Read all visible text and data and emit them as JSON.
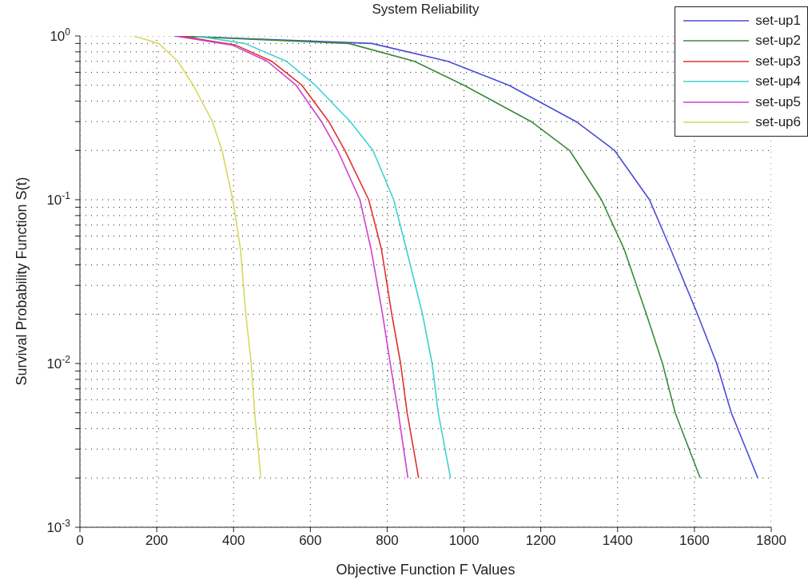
{
  "chart_data": {
    "type": "line",
    "title": "System Reliability",
    "xlabel": "Objective Function F Values",
    "ylabel": "Survival Probability Function S(t)",
    "xlim": [
      0,
      1800
    ],
    "xticks": [
      0,
      200,
      400,
      600,
      800,
      1000,
      1200,
      1400,
      1600,
      1800
    ],
    "ylim": [
      0.001,
      1
    ],
    "log": true,
    "yticks": [
      {
        "value": 0.001,
        "label": "10$^{-3}$"
      },
      {
        "value": 0.002,
        "label": null
      },
      {
        "value": 0.003,
        "label": null
      },
      {
        "value": 0.004,
        "label": null
      },
      {
        "value": 0.005,
        "label": null
      },
      {
        "value": 0.006,
        "label": null
      },
      {
        "value": 0.007,
        "label": null
      },
      {
        "value": 0.008,
        "label": null
      },
      {
        "value": 0.009,
        "label": null
      },
      {
        "value": 0.01,
        "label": "10$^{-2}$"
      },
      {
        "value": 0.02,
        "label": null
      },
      {
        "value": 0.03,
        "label": null
      },
      {
        "value": 0.04,
        "label": null
      },
      {
        "value": 0.05,
        "label": null
      },
      {
        "value": 0.06,
        "label": null
      },
      {
        "value": 0.07,
        "label": null
      },
      {
        "value": 0.08,
        "label": null
      },
      {
        "value": 0.09,
        "label": null
      },
      {
        "value": 0.1,
        "label": "10$^{-1}$"
      },
      {
        "value": 0.2,
        "label": null
      },
      {
        "value": 0.3,
        "label": null
      },
      {
        "value": 0.4,
        "label": null
      },
      {
        "value": 0.5,
        "label": null
      },
      {
        "value": 0.6,
        "label": null
      },
      {
        "value": 0.7,
        "label": null
      },
      {
        "value": 0.8,
        "label": null
      },
      {
        "value": 0.9,
        "label": null
      },
      {
        "value": 1,
        "label": "10$^{0}$"
      }
    ],
    "grid": true,
    "legend": "top right",
    "marker": "none",
    "series": [
      {
        "name": "set-up1",
        "color": "#4b4bd6",
        "x": [
          250,
          760,
          958,
          1117,
          1292,
          1392,
          1483,
          1538,
          1608,
          1658,
          1696,
          1765
        ],
        "values": [
          1,
          0.9,
          0.7,
          0.5,
          0.3,
          0.2,
          0.1,
          0.05,
          0.02,
          0.01,
          0.005,
          0.002
        ]
      },
      {
        "name": "set-up2",
        "color": "#3a8a3a",
        "x": [
          250,
          700,
          871,
          1000,
          1175,
          1275,
          1358,
          1417,
          1475,
          1517,
          1550,
          1615
        ],
        "values": [
          1,
          0.9,
          0.7,
          0.5,
          0.3,
          0.2,
          0.1,
          0.05,
          0.02,
          0.01,
          0.005,
          0.002
        ]
      },
      {
        "name": "set-up3",
        "color": "#e03030",
        "x": [
          260,
          405,
          500,
          578,
          648,
          690,
          752,
          785,
          812,
          835,
          852,
          882
        ],
        "values": [
          1,
          0.88,
          0.7,
          0.5,
          0.3,
          0.2,
          0.1,
          0.05,
          0.02,
          0.01,
          0.005,
          0.002
        ]
      },
      {
        "name": "set-up4",
        "color": "#40d0d0",
        "x": [
          300,
          429,
          538,
          613,
          704,
          763,
          817,
          850,
          892,
          917,
          933,
          965
        ],
        "values": [
          1,
          0.9,
          0.7,
          0.5,
          0.3,
          0.2,
          0.1,
          0.05,
          0.02,
          0.01,
          0.005,
          0.002
        ]
      },
      {
        "name": "set-up5",
        "color": "#d040d0",
        "x": [
          245,
          396,
          488,
          563,
          629,
          671,
          729,
          758,
          788,
          808,
          829,
          854
        ],
        "values": [
          1,
          0.88,
          0.7,
          0.5,
          0.3,
          0.2,
          0.1,
          0.05,
          0.02,
          0.01,
          0.005,
          0.002
        ]
      },
      {
        "name": "set-up6",
        "color": "#d8d860",
        "x": [
          140,
          205,
          255,
          295,
          345,
          370,
          398,
          418,
          432,
          446,
          455,
          471
        ],
        "values": [
          1,
          0.9,
          0.7,
          0.5,
          0.3,
          0.2,
          0.1,
          0.05,
          0.02,
          0.01,
          0.005,
          0.002
        ]
      }
    ]
  }
}
